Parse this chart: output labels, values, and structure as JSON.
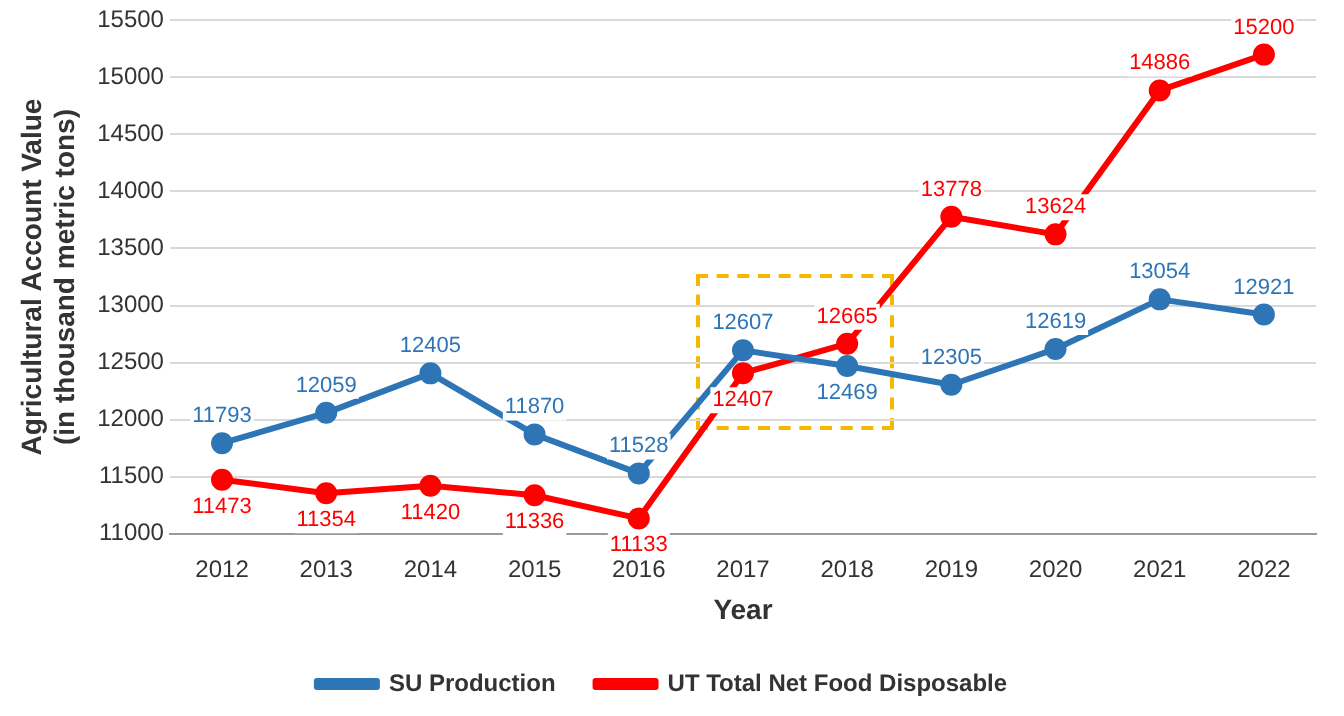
{
  "chart_data": {
    "type": "line",
    "xlabel": "Year",
    "ylabel": "Agricultural Account Value\n(in thousand metric tons)",
    "categories": [
      "2012",
      "2013",
      "2014",
      "2015",
      "2016",
      "2017",
      "2018",
      "2019",
      "2020",
      "2021",
      "2022"
    ],
    "series": [
      {
        "name": "SU Production",
        "color": "#2e75b6",
        "values": [
          11793,
          12059,
          12405,
          11870,
          11528,
          12607,
          12469,
          12305,
          12619,
          13054,
          12921
        ]
      },
      {
        "name": "UT Total Net Food Disposable",
        "color": "#ff0000",
        "values": [
          11473,
          11354,
          11420,
          11336,
          11133,
          12407,
          12665,
          13778,
          13624,
          14886,
          15200
        ]
      }
    ],
    "ylim": [
      11000,
      15500
    ],
    "yticks": [
      11000,
      11500,
      12000,
      12500,
      13000,
      13500,
      14000,
      14500,
      15000,
      15500
    ],
    "grid": "y",
    "legend": "bottom",
    "marker": "circle",
    "line_style": "solid",
    "data_labels": true
  }
}
